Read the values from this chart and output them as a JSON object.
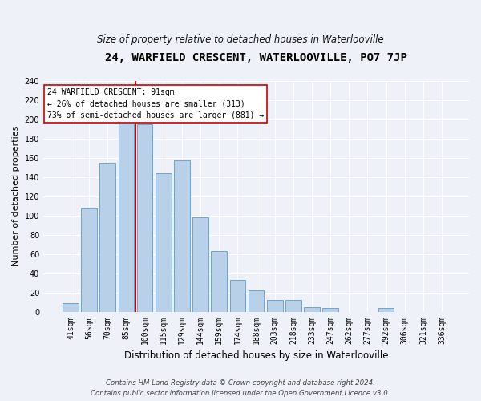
{
  "title": "24, WARFIELD CRESCENT, WATERLOOVILLE, PO7 7JP",
  "subtitle": "Size of property relative to detached houses in Waterlooville",
  "xlabel": "Distribution of detached houses by size in Waterlooville",
  "ylabel": "Number of detached properties",
  "bar_values": [
    9,
    108,
    155,
    196,
    195,
    144,
    157,
    98,
    63,
    33,
    22,
    12,
    12,
    5,
    4,
    0,
    0,
    4,
    0,
    0,
    0
  ],
  "bin_labels": [
    "41sqm",
    "56sqm",
    "70sqm",
    "85sqm",
    "100sqm",
    "115sqm",
    "129sqm",
    "144sqm",
    "159sqm",
    "174sqm",
    "188sqm",
    "203sqm",
    "218sqm",
    "233sqm",
    "247sqm",
    "262sqm",
    "277sqm",
    "292sqm",
    "306sqm",
    "321sqm",
    "336sqm"
  ],
  "bar_color": "#b8d0e8",
  "bar_edge_color": "#5a9bc8",
  "vline_color": "#cc0000",
  "vline_pos": 3.5,
  "annotation_title": "24 WARFIELD CRESCENT: 91sqm",
  "annotation_line1": "← 26% of detached houses are smaller (313)",
  "annotation_line2": "73% of semi-detached houses are larger (881) →",
  "annotation_box_color": "#ffffff",
  "annotation_box_edge": "#cc0000",
  "ylim": [
    0,
    240
  ],
  "yticks": [
    0,
    20,
    40,
    60,
    80,
    100,
    120,
    140,
    160,
    180,
    200,
    220,
    240
  ],
  "footer_line1": "Contains HM Land Registry data © Crown copyright and database right 2024.",
  "footer_line2": "Contains public sector information licensed under the Open Government Licence v3.0.",
  "background_color": "#eef2f8",
  "plot_background_color": "#eef2f8",
  "grid_color": "#ffffff",
  "title_fontsize": 10,
  "subtitle_fontsize": 8.5,
  "ylabel_fontsize": 8,
  "xlabel_fontsize": 8.5,
  "tick_fontsize": 7,
  "annotation_fontsize": 7,
  "footer_fontsize": 6.2
}
